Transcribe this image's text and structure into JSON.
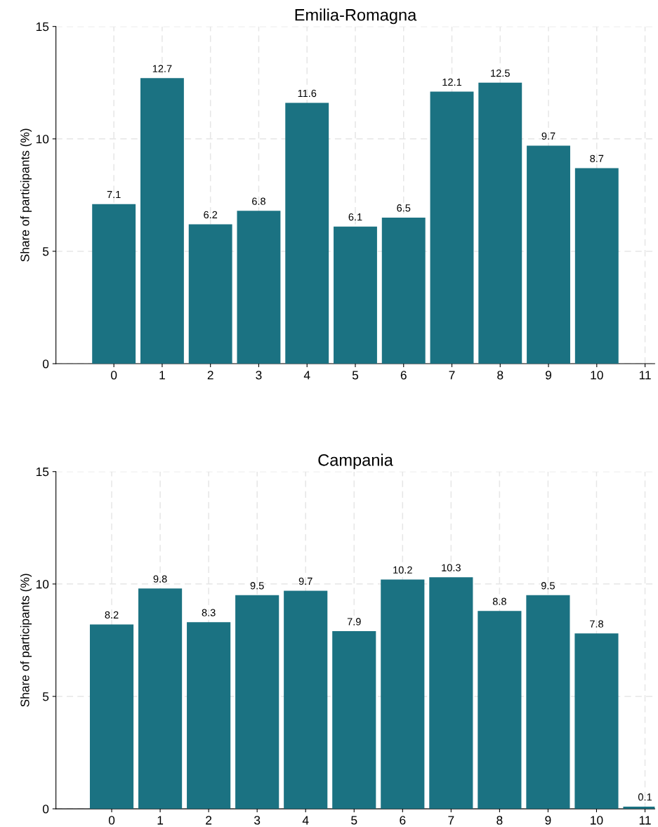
{
  "chart_data": [
    {
      "type": "bar",
      "title": "Emilia-Romagna",
      "ylabel": "Share of participants (%)",
      "x": [
        0,
        1,
        2,
        3,
        4,
        5,
        6,
        7,
        8,
        9,
        10
      ],
      "values": [
        7.1,
        12.7,
        6.2,
        6.8,
        11.6,
        6.1,
        6.5,
        12.1,
        12.5,
        9.7,
        8.7
      ],
      "color": "#1b7282",
      "data_labels": true,
      "grid": true,
      "xlim": [
        -1.2,
        11.2
      ],
      "xticks": [
        0,
        1,
        2,
        3,
        4,
        5,
        6,
        7,
        8,
        9,
        10,
        11
      ],
      "ylim": [
        0,
        15
      ],
      "yticks": [
        0,
        5,
        10,
        15
      ]
    },
    {
      "type": "bar",
      "title": "Campania",
      "ylabel": "Share of participants (%)",
      "x": [
        0,
        1,
        2,
        3,
        4,
        5,
        6,
        7,
        8,
        9,
        10,
        11
      ],
      "values": [
        8.2,
        9.8,
        8.3,
        9.5,
        9.7,
        7.9,
        10.2,
        10.3,
        8.8,
        9.5,
        7.8,
        0.1
      ],
      "color": "#1b7282",
      "data_labels": true,
      "grid": true,
      "xlim": [
        -1.15,
        11.2
      ],
      "xticks": [
        0,
        1,
        2,
        3,
        4,
        5,
        6,
        7,
        8,
        9,
        10,
        11
      ],
      "ylim": [
        0,
        15
      ],
      "yticks": [
        0,
        5,
        10,
        15
      ]
    }
  ]
}
